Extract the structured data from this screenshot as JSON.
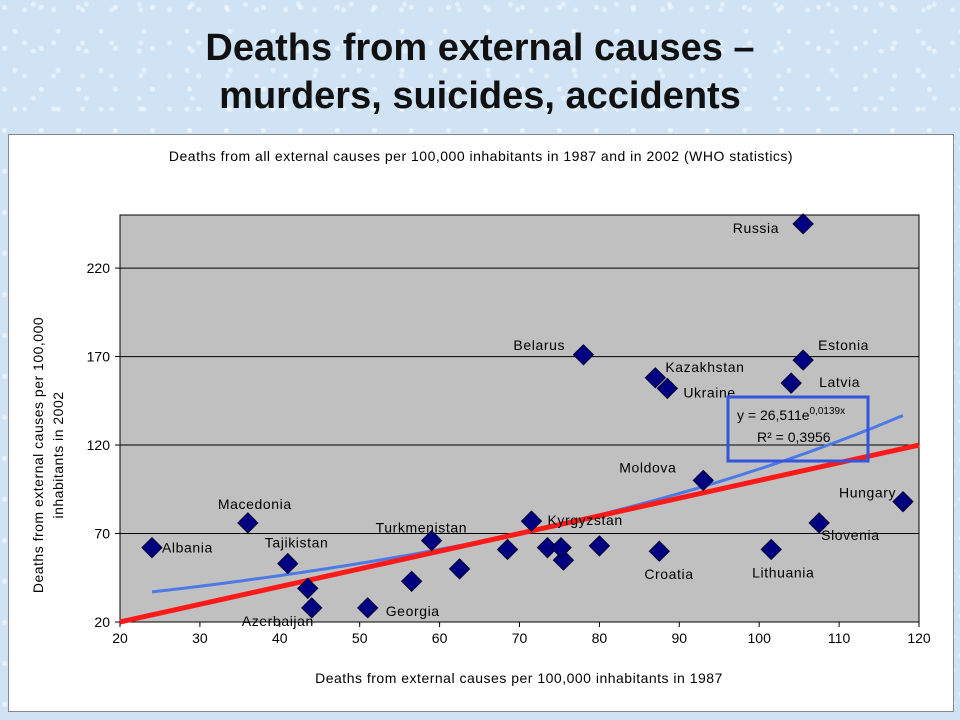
{
  "slide": {
    "title_line1": "Deaths from external causes –",
    "title_line2": "murders, suicides, accidents"
  },
  "colors": {
    "background": "#cfe3f5",
    "plot_area": "#c0c0c0",
    "marker": "#000080",
    "fit_line": "#4d79e6",
    "linear_line": "#ff1a1a",
    "equation_box": "#3355dd"
  },
  "chart_data": {
    "type": "scatter",
    "title": "Deaths from all external causes per 100,000 inhabitants in 1987 and in 2002 (WHO statistics)",
    "xlabel": "Deaths from external causes per 100,000 inhabitants in 1987",
    "ylabel_line1": "Deaths from external causes per 100,000",
    "ylabel_line2": "inhabitants in 2002",
    "xlim": [
      20,
      120
    ],
    "ylim": [
      20,
      250
    ],
    "xticks": [
      20,
      30,
      40,
      50,
      60,
      70,
      80,
      90,
      100,
      110,
      120
    ],
    "yticks": [
      20,
      70,
      120,
      170,
      220
    ],
    "grid": "horizontal",
    "points": [
      {
        "x": 24,
        "y": 62,
        "label": "Albania"
      },
      {
        "x": 36,
        "y": 76,
        "label": "Macedonia"
      },
      {
        "x": 41,
        "y": 53,
        "label": "Tajikistan"
      },
      {
        "x": 43.5,
        "y": 39,
        "label": ""
      },
      {
        "x": 44,
        "y": 28,
        "label": "Azerbaijan"
      },
      {
        "x": 51,
        "y": 28,
        "label": "Georgia"
      },
      {
        "x": 56.5,
        "y": 43,
        "label": ""
      },
      {
        "x": 59,
        "y": 66,
        "label": "Turkmenistan"
      },
      {
        "x": 62.5,
        "y": 50,
        "label": ""
      },
      {
        "x": 68.5,
        "y": 61,
        "label": ""
      },
      {
        "x": 71.5,
        "y": 77,
        "label": "Kyrgyzstan"
      },
      {
        "x": 73.5,
        "y": 62,
        "label": ""
      },
      {
        "x": 75.5,
        "y": 55,
        "label": ""
      },
      {
        "x": 75.2,
        "y": 62,
        "label": ""
      },
      {
        "x": 78,
        "y": 171,
        "label": "Belarus"
      },
      {
        "x": 80,
        "y": 63,
        "label": ""
      },
      {
        "x": 87,
        "y": 158,
        "label": "Kazakhstan"
      },
      {
        "x": 88.5,
        "y": 152,
        "label": "Ukraine"
      },
      {
        "x": 87.5,
        "y": 60,
        "label": "Croatia"
      },
      {
        "x": 93,
        "y": 100,
        "label": "Moldova"
      },
      {
        "x": 101.5,
        "y": 61,
        "label": "Lithuania"
      },
      {
        "x": 104,
        "y": 155,
        "label": "Latvia"
      },
      {
        "x": 105.5,
        "y": 168,
        "label": "Estonia"
      },
      {
        "x": 105.5,
        "y": 245,
        "label": "Russia"
      },
      {
        "x": 107.5,
        "y": 76,
        "label": "Slovenia"
      },
      {
        "x": 118,
        "y": 88,
        "label": "Hungary"
      }
    ],
    "exp_fit": {
      "a": 26.511,
      "b": 0.0139,
      "x_range": [
        24,
        118
      ]
    },
    "linear_fit": {
      "x1": 20,
      "y1": 20,
      "x2": 120,
      "y2": 120
    },
    "equation": {
      "line1_prefix": "y = 26,511e",
      "line1_exponent": "0,0139x",
      "line2": "R² = 0,3956"
    }
  }
}
